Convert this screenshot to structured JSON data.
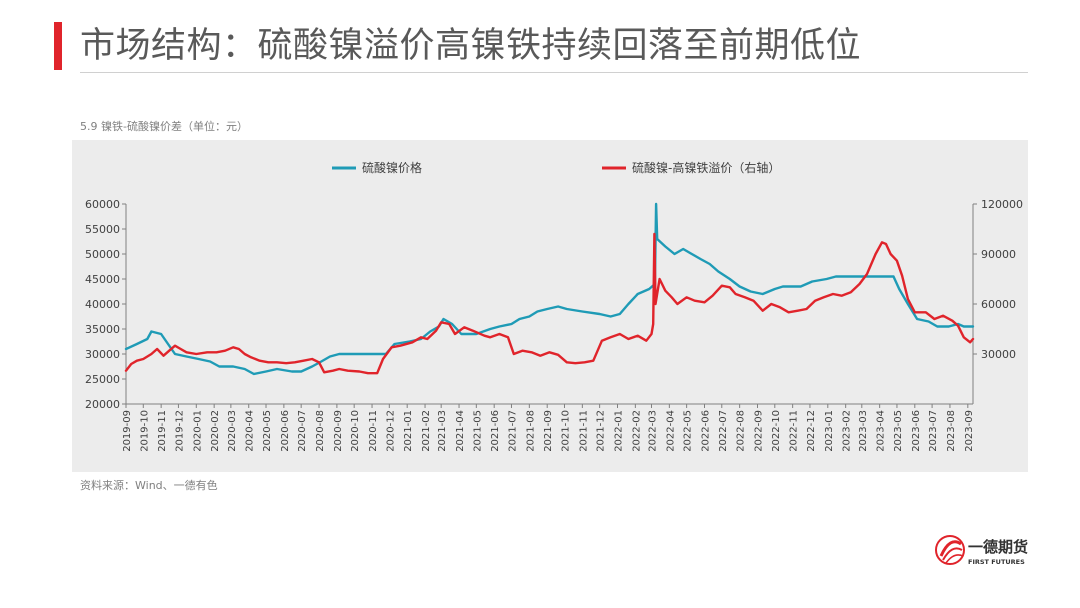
{
  "header": {
    "title": "市场结构：硫酸镍溢价高镍铁持续回落至前期低位"
  },
  "figure": {
    "caption": "5.9 镍铁-硫酸镍价差（单位：元）",
    "source": "资料来源：Wind、一德有色"
  },
  "logo": {
    "name_cn": "一德期货",
    "name_en": "FIRST FUTURES",
    "icon": "first-futures-logo-icon"
  },
  "colors": {
    "accent": "#e0242b",
    "series_left": "#1f9bb6",
    "series_right": "#e0242b",
    "chart_background": "#ececec"
  },
  "chart_data": {
    "type": "line",
    "grid": false,
    "legend_position": "top",
    "x_ticks": [
      "2019-09",
      "2019-10",
      "2019-11",
      "2019-12",
      "2020-01",
      "2020-02",
      "2020-03",
      "2020-04",
      "2020-05",
      "2020-06",
      "2020-07",
      "2020-08",
      "2020-09",
      "2020-10",
      "2020-11",
      "2020-12",
      "2021-01",
      "2021-02",
      "2021-03",
      "2021-04",
      "2021-05",
      "2021-06",
      "2021-07",
      "2021-08",
      "2021-09",
      "2021-10",
      "2021-11",
      "2021-12",
      "2022-01",
      "2022-02",
      "2022-03",
      "2022-04",
      "2022-05",
      "2022-06",
      "2022-07",
      "2022-08",
      "2022-09",
      "2022-10",
      "2022-11",
      "2022-12",
      "2023-01",
      "2023-02",
      "2023-03",
      "2023-04",
      "2023-05",
      "2023-06",
      "2023-07",
      "2023-08",
      "2023-09"
    ],
    "y_left": {
      "min": 20000,
      "max": 60000,
      "ticks": [
        "60000",
        "55000",
        "50000",
        "45000",
        "40000",
        "35000",
        "30000",
        "25000",
        "20000"
      ]
    },
    "y_right": {
      "min": 0,
      "max": 120000,
      "ticks": [
        "120000",
        "90000",
        "60000",
        "30000"
      ]
    },
    "series": [
      {
        "name": "硫酸镍价格",
        "axis": "left",
        "points": [
          [
            "2019-09-01",
            31000
          ],
          [
            "2019-09-20",
            32000
          ],
          [
            "2019-10-08",
            33000
          ],
          [
            "2019-10-15",
            34500
          ],
          [
            "2019-11-01",
            34000
          ],
          [
            "2019-11-10",
            32500
          ],
          [
            "2019-11-25",
            30000
          ],
          [
            "2019-12-15",
            29500
          ],
          [
            "2020-01-05",
            29000
          ],
          [
            "2020-01-25",
            28500
          ],
          [
            "2020-02-10",
            27500
          ],
          [
            "2020-03-05",
            27500
          ],
          [
            "2020-03-25",
            27000
          ],
          [
            "2020-04-10",
            26000
          ],
          [
            "2020-05-01",
            26500
          ],
          [
            "2020-05-20",
            27000
          ],
          [
            "2020-06-15",
            26500
          ],
          [
            "2020-07-01",
            26500
          ],
          [
            "2020-07-20",
            27500
          ],
          [
            "2020-08-05",
            28500
          ],
          [
            "2020-08-20",
            29500
          ],
          [
            "2020-09-05",
            30000
          ],
          [
            "2020-10-01",
            30000
          ],
          [
            "2020-11-01",
            30000
          ],
          [
            "2020-11-25",
            30000
          ],
          [
            "2020-12-10",
            32000
          ],
          [
            "2021-01-05",
            32500
          ],
          [
            "2021-01-25",
            33000
          ],
          [
            "2021-02-10",
            34500
          ],
          [
            "2021-02-25",
            35500
          ],
          [
            "2021-03-05",
            37000
          ],
          [
            "2021-03-20",
            36000
          ],
          [
            "2021-04-05",
            34000
          ],
          [
            "2021-05-01",
            34000
          ],
          [
            "2021-05-25",
            35000
          ],
          [
            "2021-06-10",
            35500
          ],
          [
            "2021-07-01",
            36000
          ],
          [
            "2021-07-15",
            37000
          ],
          [
            "2021-08-01",
            37500
          ],
          [
            "2021-08-15",
            38500
          ],
          [
            "2021-09-01",
            39000
          ],
          [
            "2021-09-20",
            39500
          ],
          [
            "2021-10-05",
            39000
          ],
          [
            "2021-11-01",
            38500
          ],
          [
            "2021-12-01",
            38000
          ],
          [
            "2021-12-20",
            37500
          ],
          [
            "2022-01-05",
            38000
          ],
          [
            "2022-01-20",
            40000
          ],
          [
            "2022-02-05",
            42000
          ],
          [
            "2022-02-25",
            43000
          ],
          [
            "2022-03-07",
            44000
          ],
          [
            "2022-03-09",
            60000
          ],
          [
            "2022-03-11",
            53000
          ],
          [
            "2022-03-25",
            51500
          ],
          [
            "2022-04-10",
            50000
          ],
          [
            "2022-04-25",
            51000
          ],
          [
            "2022-05-10",
            50000
          ],
          [
            "2022-05-25",
            49000
          ],
          [
            "2022-06-10",
            48000
          ],
          [
            "2022-06-25",
            46500
          ],
          [
            "2022-07-15",
            45000
          ],
          [
            "2022-08-01",
            43500
          ],
          [
            "2022-08-20",
            42500
          ],
          [
            "2022-09-10",
            42000
          ],
          [
            "2022-10-01",
            43000
          ],
          [
            "2022-10-15",
            43500
          ],
          [
            "2022-11-15",
            43500
          ],
          [
            "2022-12-05",
            44500
          ],
          [
            "2022-12-30",
            45000
          ],
          [
            "2023-01-15",
            45500
          ],
          [
            "2023-02-15",
            45500
          ],
          [
            "2023-03-25",
            45500
          ],
          [
            "2023-04-10",
            45500
          ],
          [
            "2023-04-25",
            45500
          ],
          [
            "2023-05-05",
            43000
          ],
          [
            "2023-05-20",
            40000
          ],
          [
            "2023-06-05",
            37000
          ],
          [
            "2023-06-25",
            36500
          ],
          [
            "2023-07-10",
            35500
          ],
          [
            "2023-07-30",
            35500
          ],
          [
            "2023-08-15",
            36000
          ],
          [
            "2023-08-25",
            35500
          ],
          [
            "2023-09-10",
            35500
          ]
        ]
      },
      {
        "name": "硫酸镍-高镍铁溢价（右轴）",
        "axis": "right",
        "points": [
          [
            "2019-09-01",
            20000
          ],
          [
            "2019-09-10",
            24000
          ],
          [
            "2019-09-20",
            26000
          ],
          [
            "2019-10-01",
            27000
          ],
          [
            "2019-10-15",
            30000
          ],
          [
            "2019-10-25",
            33000
          ],
          [
            "2019-11-05",
            29000
          ],
          [
            "2019-11-15",
            32000
          ],
          [
            "2019-11-25",
            35000
          ],
          [
            "2019-12-05",
            33000
          ],
          [
            "2019-12-15",
            31000
          ],
          [
            "2020-01-01",
            30000
          ],
          [
            "2020-01-20",
            31000
          ],
          [
            "2020-02-05",
            31000
          ],
          [
            "2020-02-20",
            32000
          ],
          [
            "2020-03-05",
            34000
          ],
          [
            "2020-03-15",
            33000
          ],
          [
            "2020-03-25",
            30000
          ],
          [
            "2020-04-05",
            28000
          ],
          [
            "2020-04-20",
            26000
          ],
          [
            "2020-05-05",
            25000
          ],
          [
            "2020-05-20",
            25000
          ],
          [
            "2020-06-05",
            24500
          ],
          [
            "2020-06-20",
            25000
          ],
          [
            "2020-07-05",
            26000
          ],
          [
            "2020-07-20",
            27000
          ],
          [
            "2020-08-01",
            25000
          ],
          [
            "2020-08-10",
            19000
          ],
          [
            "2020-08-25",
            20000
          ],
          [
            "2020-09-05",
            21000
          ],
          [
            "2020-09-20",
            20000
          ],
          [
            "2020-10-10",
            19500
          ],
          [
            "2020-10-25",
            18500
          ],
          [
            "2020-11-10",
            18500
          ],
          [
            "2020-11-20",
            27000
          ],
          [
            "2020-12-05",
            34000
          ],
          [
            "2020-12-20",
            35000
          ],
          [
            "2021-01-10",
            37000
          ],
          [
            "2021-01-25",
            40000
          ],
          [
            "2021-02-05",
            39000
          ],
          [
            "2021-02-20",
            44000
          ],
          [
            "2021-03-01",
            49000
          ],
          [
            "2021-03-15",
            48000
          ],
          [
            "2021-03-25",
            42000
          ],
          [
            "2021-04-10",
            46000
          ],
          [
            "2021-04-25",
            44000
          ],
          [
            "2021-05-15",
            41000
          ],
          [
            "2021-05-25",
            40000
          ],
          [
            "2021-06-10",
            42000
          ],
          [
            "2021-06-25",
            40000
          ],
          [
            "2021-07-05",
            30000
          ],
          [
            "2021-07-20",
            32000
          ],
          [
            "2021-08-05",
            31000
          ],
          [
            "2021-08-20",
            29000
          ],
          [
            "2021-09-05",
            31000
          ],
          [
            "2021-09-20",
            29500
          ],
          [
            "2021-10-05",
            25000
          ],
          [
            "2021-10-20",
            24500
          ],
          [
            "2021-11-05",
            25000
          ],
          [
            "2021-11-20",
            26000
          ],
          [
            "2021-12-05",
            38000
          ],
          [
            "2021-12-20",
            40000
          ],
          [
            "2022-01-05",
            42000
          ],
          [
            "2022-01-20",
            39000
          ],
          [
            "2022-02-05",
            41000
          ],
          [
            "2022-02-20",
            38000
          ],
          [
            "2022-03-01",
            42000
          ],
          [
            "2022-03-04",
            48000
          ],
          [
            "2022-03-06",
            102000
          ],
          [
            "2022-03-08",
            60000
          ],
          [
            "2022-03-15",
            75000
          ],
          [
            "2022-03-25",
            68000
          ],
          [
            "2022-04-05",
            64000
          ],
          [
            "2022-04-15",
            60000
          ],
          [
            "2022-05-01",
            64000
          ],
          [
            "2022-05-15",
            62000
          ],
          [
            "2022-06-01",
            61000
          ],
          [
            "2022-06-15",
            65000
          ],
          [
            "2022-07-01",
            71000
          ],
          [
            "2022-07-15",
            70000
          ],
          [
            "2022-07-25",
            66000
          ],
          [
            "2022-08-10",
            64000
          ],
          [
            "2022-08-25",
            62000
          ],
          [
            "2022-09-10",
            56000
          ],
          [
            "2022-09-25",
            60000
          ],
          [
            "2022-10-10",
            58000
          ],
          [
            "2022-10-25",
            55000
          ],
          [
            "2022-11-10",
            56000
          ],
          [
            "2022-11-25",
            57000
          ],
          [
            "2022-12-10",
            62000
          ],
          [
            "2022-12-25",
            64000
          ],
          [
            "2023-01-10",
            66000
          ],
          [
            "2023-01-25",
            65000
          ],
          [
            "2023-02-10",
            67000
          ],
          [
            "2023-02-25",
            72000
          ],
          [
            "2023-03-10",
            78000
          ],
          [
            "2023-03-25",
            90000
          ],
          [
            "2023-04-05",
            97000
          ],
          [
            "2023-04-12",
            96000
          ],
          [
            "2023-04-20",
            90000
          ],
          [
            "2023-05-01",
            86000
          ],
          [
            "2023-05-10",
            77000
          ],
          [
            "2023-05-20",
            63000
          ],
          [
            "2023-06-01",
            55000
          ],
          [
            "2023-06-20",
            55000
          ],
          [
            "2023-07-05",
            51000
          ],
          [
            "2023-07-20",
            53000
          ],
          [
            "2023-08-05",
            50000
          ],
          [
            "2023-08-15",
            47000
          ],
          [
            "2023-08-25",
            40000
          ],
          [
            "2023-09-05",
            37000
          ],
          [
            "2023-09-10",
            39000
          ]
        ]
      }
    ]
  }
}
